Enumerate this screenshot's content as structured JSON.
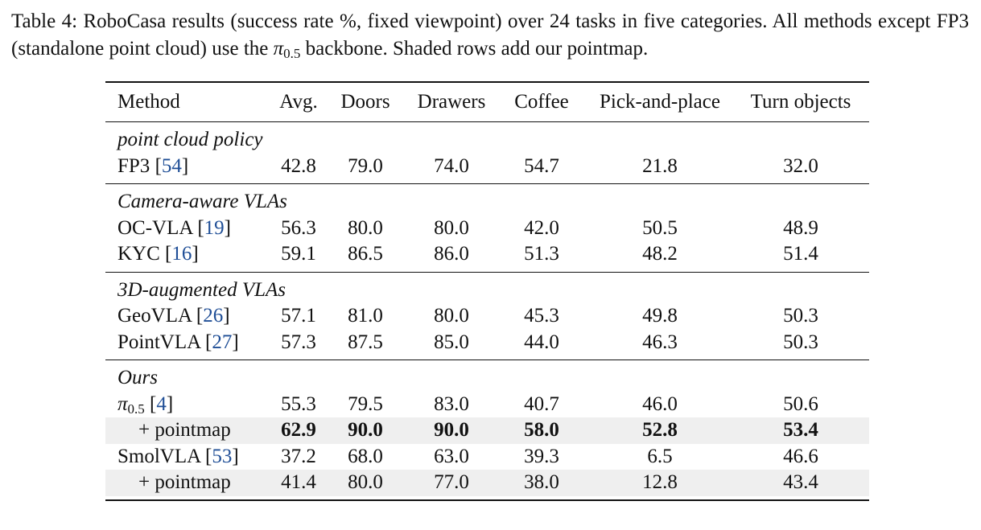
{
  "caption": {
    "label": "Table 4:",
    "text_before_math": "RoboCasa results (success rate %, fixed viewpoint) over 24 tasks in five categories. All methods except FP3 (standalone point cloud) use the",
    "math_base": "π",
    "math_sub": "0.5",
    "text_after_math": "backbone. Shaded rows add our pointmap."
  },
  "table": {
    "headers": {
      "method": "Method",
      "avg": "Avg.",
      "doors": "Doors",
      "drawers": "Drawers",
      "coffee": "Coffee",
      "pnp": "Pick-and-place",
      "turn": "Turn objects"
    },
    "groups": [
      {
        "title": "point cloud policy",
        "rows": [
          {
            "name": "FP3",
            "ref": "54",
            "avg": "42.8",
            "doors": "79.0",
            "drawers": "74.0",
            "coffee": "54.7",
            "pnp": "21.8",
            "turn": "32.0"
          }
        ]
      },
      {
        "title": "Camera-aware VLAs",
        "rows": [
          {
            "name": "OC-VLA",
            "ref": "19",
            "avg": "56.3",
            "doors": "80.0",
            "drawers": "80.0",
            "coffee": "42.0",
            "pnp": "50.5",
            "turn": "48.9"
          },
          {
            "name": "KYC",
            "ref": "16",
            "avg": "59.1",
            "doors": "86.5",
            "drawers": "86.0",
            "coffee": "51.3",
            "pnp": "48.2",
            "turn": "51.4"
          }
        ]
      },
      {
        "title": "3D-augmented VLAs",
        "rows": [
          {
            "name": "GeoVLA",
            "ref": "26",
            "avg": "57.1",
            "doors": "81.0",
            "drawers": "80.0",
            "coffee": "45.3",
            "pnp": "49.8",
            "turn": "50.3"
          },
          {
            "name": "PointVLA",
            "ref": "27",
            "avg": "57.3",
            "doors": "87.5",
            "drawers": "85.0",
            "coffee": "44.0",
            "pnp": "46.3",
            "turn": "50.3"
          }
        ]
      },
      {
        "title": "Ours",
        "rows": [
          {
            "name_base": "π",
            "name_sub": "0.5",
            "ref": "4",
            "avg": "55.3",
            "doors": "79.5",
            "drawers": "83.0",
            "coffee": "40.7",
            "pnp": "46.0",
            "turn": "50.6"
          },
          {
            "name": "+ pointmap",
            "avg": "62.9",
            "doors": "90.0",
            "drawers": "90.0",
            "coffee": "58.0",
            "pnp": "52.8",
            "turn": "53.4"
          },
          {
            "name": "SmolVLA",
            "ref": "53",
            "avg": "37.2",
            "doors": "68.0",
            "drawers": "63.0",
            "coffee": "39.3",
            "pnp": "6.5",
            "turn": "46.6"
          },
          {
            "name": "+ pointmap",
            "avg": "41.4",
            "doors": "80.0",
            "drawers": "77.0",
            "coffee": "38.0",
            "pnp": "12.8",
            "turn": "43.4"
          }
        ]
      }
    ]
  }
}
